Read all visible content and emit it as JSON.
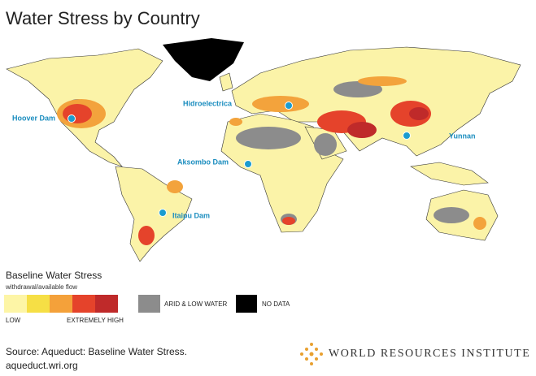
{
  "title": "Water Stress by Country",
  "map": {
    "dams": [
      {
        "label": "Hoover Dam"
      },
      {
        "label": "Hidroelectrica"
      },
      {
        "label": "Yunnan"
      },
      {
        "label": "Aksombo Dam"
      },
      {
        "label": "Itaipu Dam"
      }
    ]
  },
  "legend": {
    "title": "Baseline Water Stress",
    "subtitle": "withdrawal/available flow",
    "low": "LOW",
    "high": "EXTREMELY HIGH",
    "arid": "ARID & LOW WATER",
    "no_data": "NO DATA"
  },
  "source": [
    "Source: Aqueduct: Baseline Water Stress.",
    "aqueduct.wri.org"
  ],
  "logo": "WORLD RESOURCES INSTITUTE"
}
